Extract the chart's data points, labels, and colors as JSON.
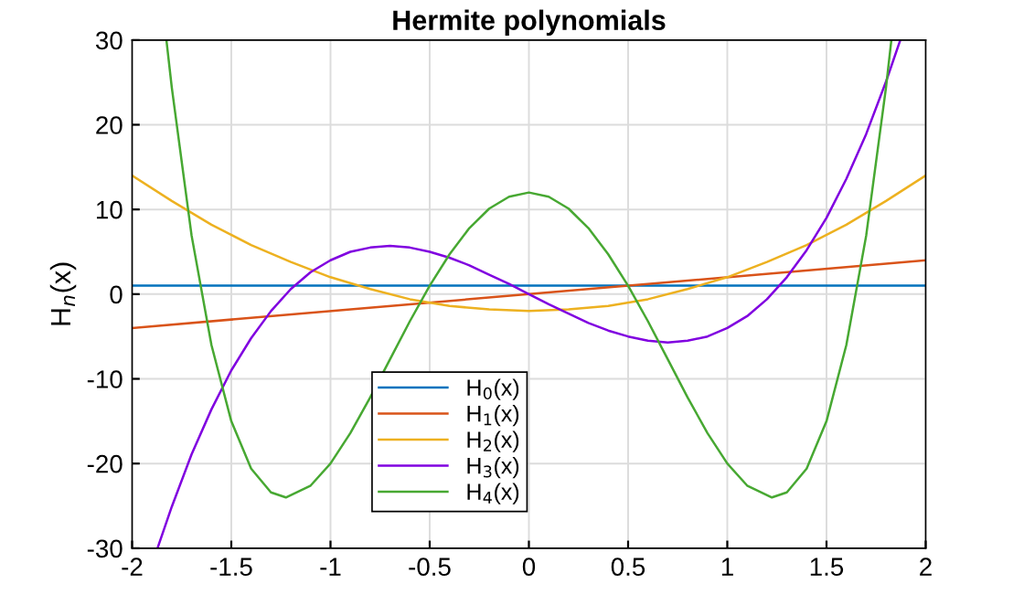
{
  "chart_data": {
    "type": "line",
    "title": "Hermite polynomials",
    "ylabel": "H$_{n}$(x)",
    "xlim": [
      -2,
      2
    ],
    "ylim": [
      -30,
      30
    ],
    "xticks": [
      -2,
      -1.5,
      -1,
      -0.5,
      0,
      0.5,
      1,
      1.5,
      2
    ],
    "yticks": [
      -30,
      -20,
      -10,
      0,
      10,
      20,
      30
    ],
    "grid": true,
    "legend": "bottom",
    "line_style": "solid",
    "series": [
      {
        "name": "H$_{0}$(x)",
        "color": "#0072bd",
        "x": [
          -2,
          2
        ],
        "values": [
          1,
          1
        ]
      },
      {
        "name": "H$_{1}$(x)",
        "color": "#d95319",
        "x": [
          -2,
          2
        ],
        "values": [
          -4,
          4
        ]
      },
      {
        "name": "H$_{2}$(x)",
        "color": "#edb120",
        "x": [
          -2,
          -1.8,
          -1.6,
          -1.4,
          -1.2,
          -1,
          -0.8,
          -0.6,
          -0.4,
          -0.2,
          0,
          0.2,
          0.4,
          0.6,
          0.8,
          1,
          1.2,
          1.4,
          1.6,
          1.8,
          2
        ],
        "values": [
          14,
          11,
          8.2,
          5.8,
          3.8,
          2,
          0.6,
          -0.6,
          -1.4,
          -1.8,
          -2,
          -1.8,
          -1.4,
          -0.6,
          0.6,
          2,
          3.8,
          5.8,
          8.2,
          11,
          14
        ]
      },
      {
        "name": "H$_{3}$(x)",
        "color": "#8000e0",
        "x": [
          -1.872,
          -1.8,
          -1.7,
          -1.6,
          -1.5,
          -1.4,
          -1.3,
          -1.2,
          -1.1,
          -1,
          -0.9,
          -0.8,
          -0.7,
          -0.6,
          -0.5,
          -0.4,
          -0.3,
          -0.2,
          -0.1,
          0,
          0.1,
          0.2,
          0.3,
          0.4,
          0.5,
          0.6,
          0.7,
          0.8,
          0.9,
          1,
          1.1,
          1.2,
          1.3,
          1.4,
          1.5,
          1.6,
          1.7,
          1.8,
          1.872
        ],
        "values": [
          -30,
          -25.1,
          -18.9,
          -13.6,
          -9,
          -5.2,
          -2,
          0.6,
          2.6,
          4,
          5,
          5.5,
          5.7,
          5.5,
          5,
          4.3,
          3.4,
          2.3,
          1.2,
          0,
          -1.2,
          -2.3,
          -3.4,
          -4.3,
          -5,
          -5.5,
          -5.7,
          -5.5,
          -5,
          -4,
          -2.6,
          -0.6,
          2,
          5.2,
          9,
          13.6,
          18.9,
          25.1,
          30
        ]
      },
      {
        "name": "H$_{4}$(x)",
        "color": "#47a832",
        "x": [
          -1.827,
          -1.8,
          -1.7,
          -1.6,
          -1.5,
          -1.4,
          -1.3,
          -1.225,
          -1.1,
          -1,
          -0.9,
          -0.8,
          -0.7,
          -0.6,
          -0.5,
          -0.4,
          -0.3,
          -0.2,
          -0.1,
          0,
          0.1,
          0.2,
          0.3,
          0.4,
          0.5,
          0.6,
          0.7,
          0.8,
          0.9,
          1,
          1.1,
          1.225,
          1.3,
          1.4,
          1.5,
          1.6,
          1.7,
          1.8,
          1.827
        ],
        "values": [
          30,
          24.4,
          6.9,
          -6,
          -15,
          -20.6,
          -23.4,
          -24,
          -22.6,
          -20,
          -16.4,
          -12.2,
          -7.7,
          -3.2,
          1,
          4.7,
          7.8,
          10.1,
          11.5,
          12,
          11.5,
          10.1,
          7.8,
          4.7,
          1,
          -3.2,
          -7.7,
          -12.2,
          -16.4,
          -20,
          -22.6,
          -24,
          -23.4,
          -20.6,
          -15,
          -6,
          6.9,
          24.4,
          30
        ]
      }
    ]
  }
}
